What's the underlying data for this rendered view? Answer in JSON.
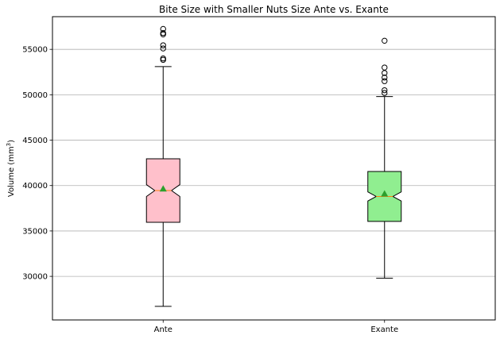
{
  "chart_data": {
    "type": "boxplot",
    "title": "Bite Size with Smaller Nuts Size Ante vs. Exante",
    "xlabel": "",
    "ylabel": "Volume (mm",
    "ylabel_superscript": "3",
    "ylabel_suffix": ")",
    "ylim": [
      25200,
      58600
    ],
    "yticks": [
      30000,
      35000,
      40000,
      45000,
      50000,
      55000
    ],
    "grid": "y",
    "notched": true,
    "categories": [
      "Ante",
      "Exante"
    ],
    "series": [
      {
        "category": "Ante",
        "color": "#ffc0cb",
        "whisker_low": 26700,
        "q1": 35950,
        "median": 39450,
        "q3": 42950,
        "whisker_high": 53100,
        "notch_low": 38800,
        "notch_high": 40100,
        "mean": 39650,
        "outliers": [
          53850,
          54000,
          55100,
          55450,
          56650,
          56800,
          57250
        ]
      },
      {
        "category": "Exante",
        "color": "#90ee90",
        "whisker_low": 29800,
        "q1": 36050,
        "median": 38800,
        "q3": 41550,
        "whisker_high": 49800,
        "notch_low": 38300,
        "notch_high": 39300,
        "mean": 39100,
        "outliers": [
          50200,
          50500,
          51500,
          51900,
          52400,
          53000,
          55950
        ]
      }
    ],
    "mean_marker_color": "#2ca02c",
    "median_line_color": "#ff7f0e"
  }
}
